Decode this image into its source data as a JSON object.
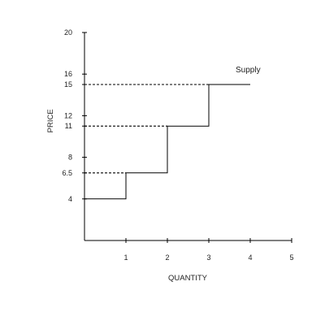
{
  "chart_data": {
    "type": "line",
    "title": "",
    "xlabel": "QUANTITY",
    "ylabel": "PRICE",
    "xlim": [
      0,
      5
    ],
    "ylim": [
      0,
      20
    ],
    "x_ticks": [
      1,
      2,
      3,
      4,
      5
    ],
    "x_tick_labels": [
      "1",
      "2",
      "3",
      "4",
      "5"
    ],
    "y_ticks": [
      4,
      6.5,
      8,
      11,
      12,
      15,
      16,
      20
    ],
    "y_tick_labels": [
      "4",
      "6.5",
      "8",
      "11",
      "12",
      "15",
      "16",
      "20"
    ],
    "grid": false,
    "series": [
      {
        "name": "Supply",
        "step": true,
        "points": [
          {
            "x": 0,
            "y": 4
          },
          {
            "x": 1,
            "y": 4
          },
          {
            "x": 1,
            "y": 6.5
          },
          {
            "x": 2,
            "y": 6.5
          },
          {
            "x": 2,
            "y": 11
          },
          {
            "x": 3,
            "y": 11
          },
          {
            "x": 3,
            "y": 15
          },
          {
            "x": 4,
            "y": 15
          }
        ]
      }
    ],
    "reference_lines": [
      {
        "type": "horizontal",
        "style": "dashed",
        "y": 6.5,
        "x_from": 0,
        "x_to": 1
      },
      {
        "type": "horizontal",
        "style": "dashed",
        "y": 11,
        "x_from": 0,
        "x_to": 2
      },
      {
        "type": "horizontal",
        "style": "dashed",
        "y": 15,
        "x_from": 0,
        "x_to": 3
      }
    ]
  }
}
